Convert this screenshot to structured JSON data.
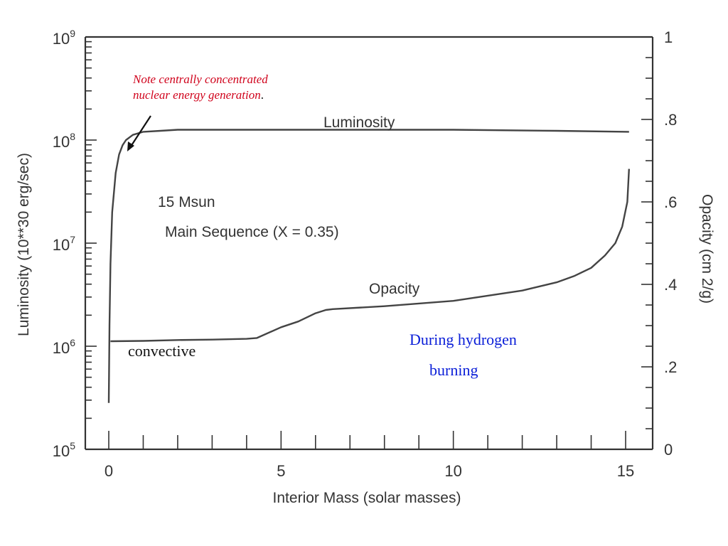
{
  "chart_data": {
    "type": "line",
    "xlabel": "Interior Mass (solar masses)",
    "ylabel_left": "Luminosity (10**30 erg/sec)",
    "ylabel_right": "Opacity (cm^2/g)",
    "ylabel_right_display": "Opacity (cm  2/g)",
    "xlim": [
      0,
      15.6
    ],
    "ylim_left_log10": [
      5,
      9
    ],
    "ylim_right": [
      0,
      1
    ],
    "x_ticks": [
      0,
      5,
      10,
      15
    ],
    "x_tick_labels": [
      "0",
      "5",
      "10",
      "15"
    ],
    "left_ticks_exp": [
      5,
      6,
      7,
      8,
      9
    ],
    "left_tick_base": "10",
    "right_ticks": [
      0,
      0.2,
      0.4,
      0.6,
      0.8,
      1
    ],
    "right_tick_labels": [
      "0",
      ".2",
      ".4",
      ".6",
      ".8",
      "1"
    ],
    "in_chart_labels": {
      "luminosity": "Luminosity",
      "opacity": "Opacity",
      "star": "15 Msun",
      "sequence": "Main Sequence (X = 0.35)"
    },
    "series": [
      {
        "name": "Luminosity",
        "axis": "left",
        "x": [
          0.0,
          0.02,
          0.05,
          0.1,
          0.2,
          0.3,
          0.4,
          0.5,
          0.7,
          1.0,
          1.5,
          2.0,
          3.0,
          5.0,
          8.0,
          10.0,
          13.0,
          15.1
        ],
        "y_log10": [
          5.45,
          6.2,
          6.8,
          7.3,
          7.68,
          7.86,
          7.95,
          8.0,
          8.05,
          8.08,
          8.09,
          8.1,
          8.1,
          8.1,
          8.1,
          8.1,
          8.09,
          8.08
        ]
      },
      {
        "name": "Opacity",
        "axis": "right",
        "x": [
          0.05,
          1.0,
          2.0,
          3.0,
          4.0,
          4.3,
          5.0,
          5.5,
          6.0,
          6.3,
          6.5,
          8.0,
          10.0,
          12.0,
          13.0,
          13.5,
          14.0,
          14.4,
          14.7,
          14.9,
          15.05,
          15.1
        ],
        "y": [
          0.262,
          0.263,
          0.265,
          0.266,
          0.268,
          0.27,
          0.296,
          0.31,
          0.33,
          0.338,
          0.34,
          0.347,
          0.36,
          0.385,
          0.405,
          0.42,
          0.44,
          0.47,
          0.5,
          0.54,
          0.6,
          0.68
        ]
      }
    ]
  },
  "annotations": {
    "note_line1": "Note centrally concentrated",
    "note_line2": "nuclear energy generation",
    "note_period": ".",
    "convective": "convective",
    "during1": "During hydrogen",
    "during2": "burning"
  },
  "colors": {
    "axis": "#333333",
    "curve": "#444444",
    "note": "#d0021b",
    "hydrogen": "#0a1ed8"
  }
}
